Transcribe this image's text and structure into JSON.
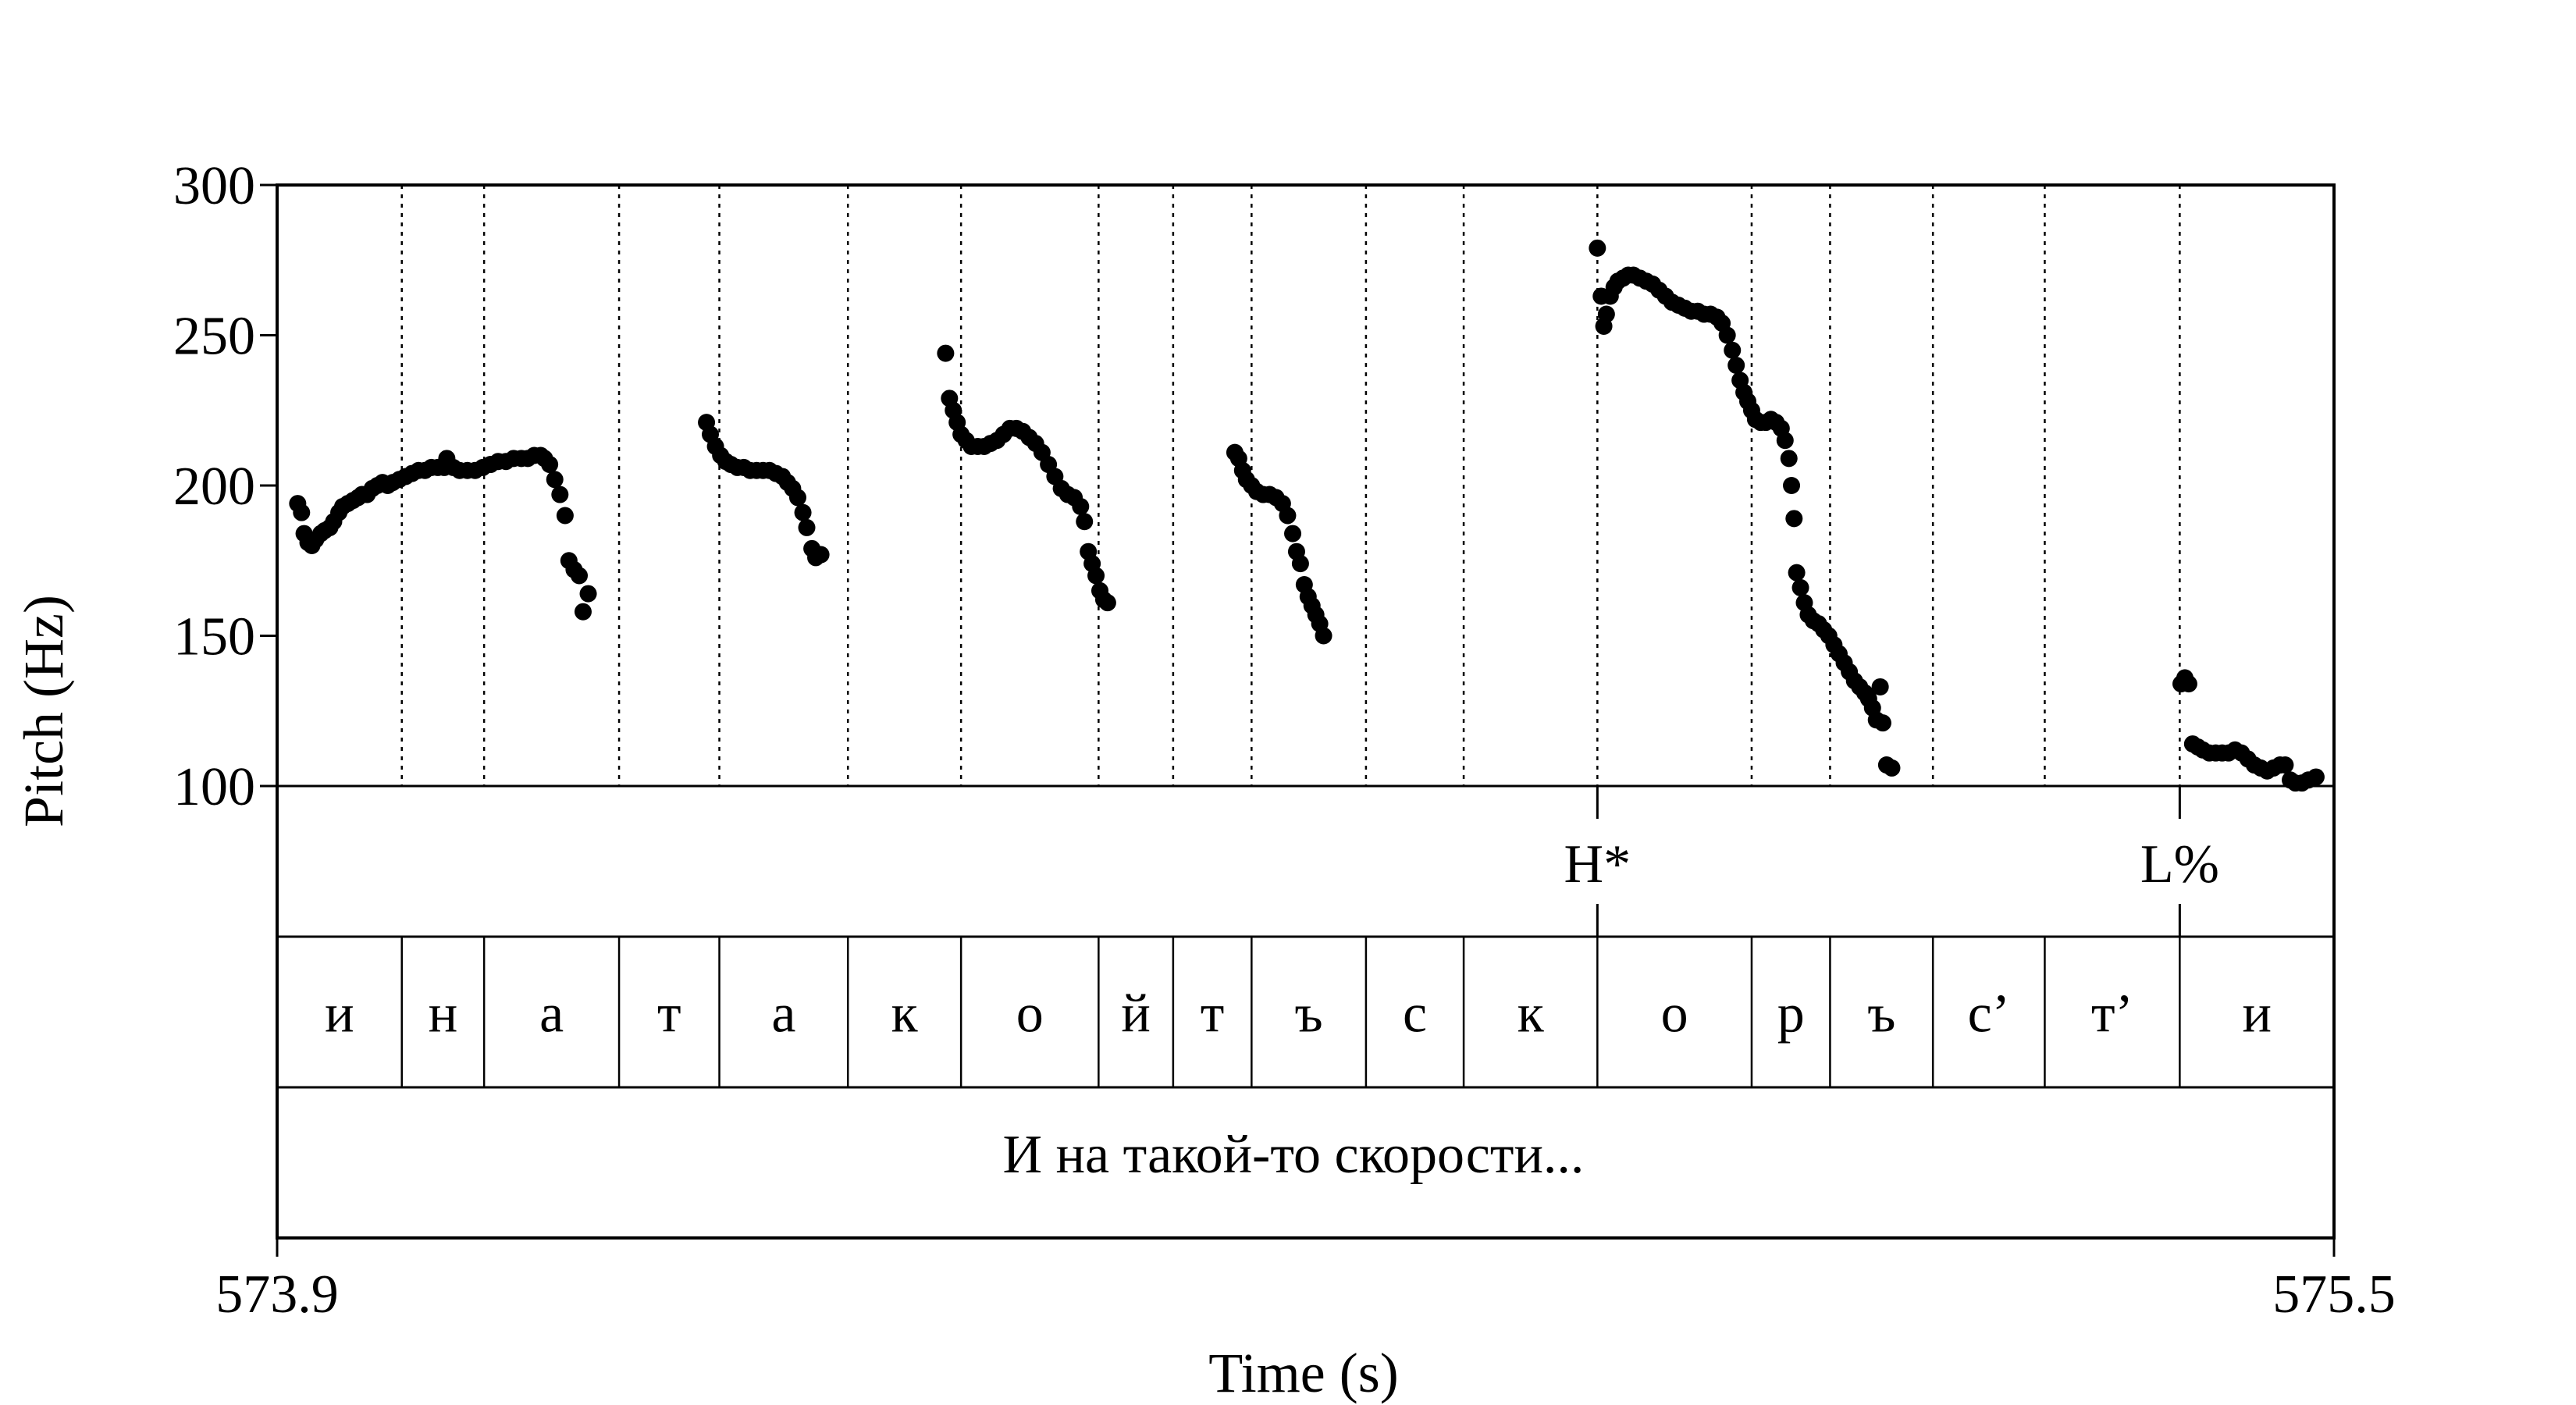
{
  "chart_data": {
    "type": "scatter",
    "title": "",
    "xlabel": "Time (s)",
    "ylabel": "Pitch (Hz)",
    "xlim": [
      573.9,
      575.5
    ],
    "ylim": [
      100,
      300
    ],
    "x_tick_labels": [
      "573.9",
      "575.5"
    ],
    "y_ticks": [
      100,
      150,
      200,
      250,
      300
    ],
    "y_tick_labels": [
      "100",
      "150",
      "200",
      "250",
      "300"
    ],
    "series": [
      {
        "points": [
          [
            573.916,
            194
          ],
          [
            573.919,
            191
          ],
          [
            573.921,
            184
          ],
          [
            573.924,
            181
          ],
          [
            573.927,
            180
          ],
          [
            573.93,
            182
          ],
          [
            573.934,
            184
          ],
          [
            573.937,
            185
          ],
          [
            573.941,
            186
          ],
          [
            573.944,
            188
          ],
          [
            573.948,
            191
          ],
          [
            573.951,
            193
          ],
          [
            573.955,
            194
          ],
          [
            573.959,
            195
          ],
          [
            573.963,
            196
          ],
          [
            573.966,
            197
          ],
          [
            573.97,
            197
          ],
          [
            573.974,
            199
          ],
          [
            573.978,
            200
          ],
          [
            573.982,
            201
          ],
          [
            573.986,
            200
          ],
          [
            573.99,
            201
          ],
          [
            573.995,
            202
          ],
          [
            574.0,
            203
          ],
          [
            574.005,
            204
          ],
          [
            574.01,
            205
          ],
          [
            574.015,
            205
          ],
          [
            574.02,
            206
          ],
          [
            574.025,
            206
          ],
          [
            574.03,
            206
          ],
          [
            574.032,
            209
          ],
          [
            574.037,
            206
          ],
          [
            574.042,
            205
          ],
          [
            574.048,
            205
          ],
          [
            574.054,
            205
          ],
          [
            574.06,
            206
          ],
          [
            574.066,
            207
          ],
          [
            574.072,
            208
          ],
          [
            574.078,
            208
          ],
          [
            574.084,
            209
          ],
          [
            574.09,
            209
          ],
          [
            574.095,
            209
          ],
          [
            574.1,
            210
          ],
          [
            574.105,
            210
          ],
          [
            574.108,
            209
          ],
          [
            574.112,
            207
          ],
          [
            574.116,
            202
          ],
          [
            574.12,
            197
          ],
          [
            574.124,
            190
          ],
          [
            574.127,
            175
          ],
          [
            574.131,
            172
          ],
          [
            574.135,
            170
          ],
          [
            574.138,
            158
          ],
          [
            574.142,
            164
          ],
          [
            574.234,
            221
          ],
          [
            574.237,
            217
          ],
          [
            574.241,
            213
          ],
          [
            574.245,
            210
          ],
          [
            574.249,
            208
          ],
          [
            574.253,
            207
          ],
          [
            574.258,
            206
          ],
          [
            574.263,
            206
          ],
          [
            574.268,
            205
          ],
          [
            574.273,
            205
          ],
          [
            574.278,
            205
          ],
          [
            574.283,
            205
          ],
          [
            574.288,
            204
          ],
          [
            574.293,
            203
          ],
          [
            574.297,
            201
          ],
          [
            574.301,
            199
          ],
          [
            574.305,
            196
          ],
          [
            574.309,
            191
          ],
          [
            574.312,
            186
          ],
          [
            574.316,
            179
          ],
          [
            574.319,
            176
          ],
          [
            574.323,
            177
          ],
          [
            574.42,
            244
          ],
          [
            574.423,
            229
          ],
          [
            574.426,
            225
          ],
          [
            574.429,
            221
          ],
          [
            574.432,
            217
          ],
          [
            574.436,
            215
          ],
          [
            574.44,
            213
          ],
          [
            574.445,
            213
          ],
          [
            574.45,
            213
          ],
          [
            574.455,
            214
          ],
          [
            574.46,
            215
          ],
          [
            574.465,
            217
          ],
          [
            574.47,
            219
          ],
          [
            574.475,
            219
          ],
          [
            574.48,
            218
          ],
          [
            574.485,
            216
          ],
          [
            574.49,
            214
          ],
          [
            574.495,
            211
          ],
          [
            574.5,
            207
          ],
          [
            574.505,
            203
          ],
          [
            574.51,
            199
          ],
          [
            574.515,
            197
          ],
          [
            574.52,
            196
          ],
          [
            574.525,
            193
          ],
          [
            574.528,
            188
          ],
          [
            574.531,
            178
          ],
          [
            574.534,
            174
          ],
          [
            574.537,
            170
          ],
          [
            574.54,
            165
          ],
          [
            574.543,
            162
          ],
          [
            574.546,
            161
          ],
          [
            574.645,
            211
          ],
          [
            574.648,
            209
          ],
          [
            574.651,
            205
          ],
          [
            574.654,
            202
          ],
          [
            574.658,
            200
          ],
          [
            574.662,
            198
          ],
          [
            574.667,
            197
          ],
          [
            574.672,
            197
          ],
          [
            574.677,
            196
          ],
          [
            574.682,
            194
          ],
          [
            574.686,
            190
          ],
          [
            574.69,
            184
          ],
          [
            574.693,
            178
          ],
          [
            574.696,
            174
          ],
          [
            574.699,
            167
          ],
          [
            574.702,
            163
          ],
          [
            574.705,
            160
          ],
          [
            574.708,
            157
          ],
          [
            574.711,
            154
          ],
          [
            574.714,
            150
          ],
          [
            574.927,
            279
          ],
          [
            574.93,
            263
          ],
          [
            574.932,
            253
          ],
          [
            574.934,
            257
          ],
          [
            574.937,
            263
          ],
          [
            574.94,
            266
          ],
          [
            574.943,
            268
          ],
          [
            574.947,
            269
          ],
          [
            574.951,
            270
          ],
          [
            574.955,
            270
          ],
          [
            574.96,
            269
          ],
          [
            574.965,
            268
          ],
          [
            574.97,
            267
          ],
          [
            574.975,
            265
          ],
          [
            574.98,
            263
          ],
          [
            574.985,
            261
          ],
          [
            574.99,
            260
          ],
          [
            574.995,
            259
          ],
          [
            575.0,
            258
          ],
          [
            575.005,
            258
          ],
          [
            575.01,
            257
          ],
          [
            575.015,
            257
          ],
          [
            575.02,
            256
          ],
          [
            575.024,
            254
          ],
          [
            575.028,
            250
          ],
          [
            575.032,
            245
          ],
          [
            575.035,
            240
          ],
          [
            575.038,
            235
          ],
          [
            575.041,
            231
          ],
          [
            575.044,
            228
          ],
          [
            575.047,
            225
          ],
          [
            575.05,
            222
          ],
          [
            575.054,
            221
          ],
          [
            575.058,
            221
          ],
          [
            575.062,
            222
          ],
          [
            575.066,
            221
          ],
          [
            575.07,
            219
          ],
          [
            575.073,
            215
          ],
          [
            575.076,
            209
          ],
          [
            575.078,
            200
          ],
          [
            575.08,
            189
          ],
          [
            575.082,
            171
          ],
          [
            575.085,
            166
          ],
          [
            575.088,
            161
          ],
          [
            575.091,
            157
          ],
          [
            575.095,
            155
          ],
          [
            575.099,
            154
          ],
          [
            575.103,
            152
          ],
          [
            575.107,
            150
          ],
          [
            575.111,
            147
          ],
          [
            575.115,
            144
          ],
          [
            575.119,
            141
          ],
          [
            575.123,
            138
          ],
          [
            575.127,
            135
          ],
          [
            575.131,
            133
          ],
          [
            575.135,
            131
          ],
          [
            575.138,
            129
          ],
          [
            575.141,
            126
          ],
          [
            575.144,
            122
          ],
          [
            575.147,
            133
          ],
          [
            575.149,
            121
          ],
          [
            575.152,
            107
          ],
          [
            575.156,
            106
          ],
          [
            575.381,
            134
          ],
          [
            575.384,
            136
          ],
          [
            575.387,
            134
          ],
          [
            575.39,
            114
          ],
          [
            575.394,
            113
          ],
          [
            575.398,
            112
          ],
          [
            575.403,
            111
          ],
          [
            575.408,
            111
          ],
          [
            575.413,
            111
          ],
          [
            575.418,
            111
          ],
          [
            575.423,
            112
          ],
          [
            575.428,
            111
          ],
          [
            575.433,
            109
          ],
          [
            575.438,
            107
          ],
          [
            575.443,
            106
          ],
          [
            575.448,
            105
          ],
          [
            575.453,
            106
          ],
          [
            575.458,
            107
          ],
          [
            575.462,
            107
          ],
          [
            575.466,
            102
          ],
          [
            575.47,
            101
          ],
          [
            575.475,
            101
          ],
          [
            575.48,
            102
          ],
          [
            575.486,
            103
          ]
        ]
      }
    ]
  },
  "boundaries": [
    573.997,
    574.061,
    574.166,
    574.244,
    574.344,
    574.432,
    574.539,
    574.597,
    574.658,
    574.747,
    574.823,
    574.927,
    575.047,
    575.108,
    575.188,
    575.275,
    575.38
  ],
  "segments": [
    "и",
    "н",
    "а",
    "т",
    "а",
    "к",
    "о",
    "й",
    "т",
    "ъ",
    "с",
    "к",
    "о",
    "р",
    "ъ",
    "с’",
    "т’",
    "и"
  ],
  "tones": [
    {
      "label": "H*",
      "time": 574.927
    },
    {
      "label": "L%",
      "time": 575.38
    }
  ],
  "utterance": "И на такой-то скорости..."
}
